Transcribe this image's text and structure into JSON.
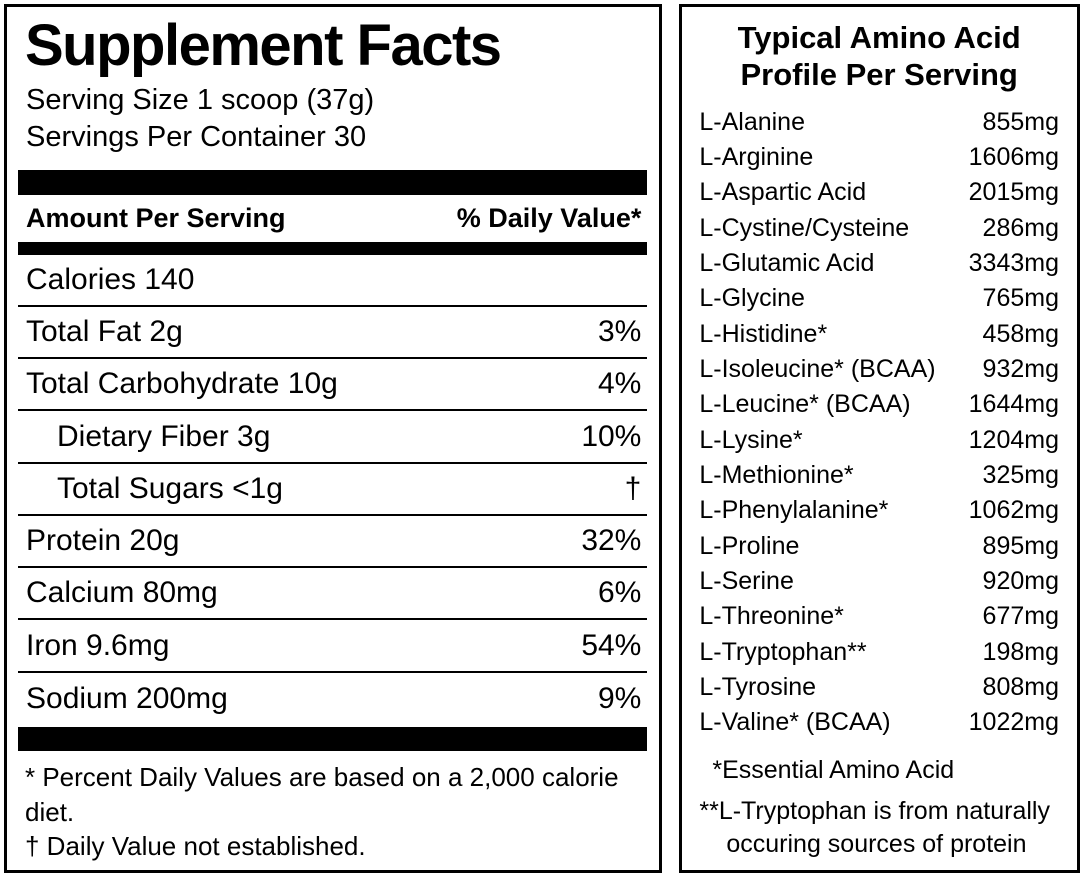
{
  "left_panel": {
    "title": "Supplement Facts",
    "serving_size": "Serving Size 1 scoop (37g)",
    "servings_per_container": "Servings Per Container 30",
    "header": {
      "amount": "Amount Per Serving",
      "daily_value": "% Daily Value*"
    },
    "rows": [
      {
        "name": "Calories 140",
        "dv": "",
        "indent": false
      },
      {
        "name": "Total Fat 2g",
        "dv": "3%",
        "indent": false
      },
      {
        "name": "Total Carbohydrate 10g",
        "dv": "4%",
        "indent": false
      },
      {
        "name": "Dietary Fiber 3g",
        "dv": "10%",
        "indent": true
      },
      {
        "name": "Total Sugars <1g",
        "dv": "†",
        "indent": true
      },
      {
        "name": "Protein 20g",
        "dv": "32%",
        "indent": false
      },
      {
        "name": "Calcium 80mg",
        "dv": "6%",
        "indent": false
      },
      {
        "name": "Iron 9.6mg",
        "dv": "54%",
        "indent": false
      },
      {
        "name": "Sodium 200mg",
        "dv": "9%",
        "indent": false
      }
    ],
    "footnotes": [
      "* Percent Daily Values are based on a 2,000 calorie diet.",
      "† Daily Value not established."
    ]
  },
  "right_panel": {
    "title_line1": "Typical Amino Acid",
    "title_line2": "Profile Per Serving",
    "rows": [
      {
        "name": "L-Alanine",
        "amount": "855mg"
      },
      {
        "name": "L-Arginine",
        "amount": "1606mg"
      },
      {
        "name": "L-Aspartic Acid",
        "amount": "2015mg"
      },
      {
        "name": "L-Cystine/Cysteine",
        "amount": "286mg"
      },
      {
        "name": "L-Glutamic Acid",
        "amount": "3343mg"
      },
      {
        "name": "L-Glycine",
        "amount": "765mg"
      },
      {
        "name": "L-Histidine*",
        "amount": "458mg"
      },
      {
        "name": "L-Isoleucine* (BCAA)",
        "amount": "932mg"
      },
      {
        "name": "L-Leucine* (BCAA)",
        "amount": "1644mg"
      },
      {
        "name": "L-Lysine*",
        "amount": "1204mg"
      },
      {
        "name": "L-Methionine*",
        "amount": "325mg"
      },
      {
        "name": "L-Phenylalanine*",
        "amount": "1062mg"
      },
      {
        "name": "L-Proline",
        "amount": "895mg"
      },
      {
        "name": "L-Serine",
        "amount": "920mg"
      },
      {
        "name": "L-Threonine*",
        "amount": "677mg"
      },
      {
        "name": "L-Tryptophan**",
        "amount": "198mg"
      },
      {
        "name": "L-Tyrosine",
        "amount": "808mg"
      },
      {
        "name": "L-Valine* (BCAA)",
        "amount": "1022mg"
      }
    ],
    "footnotes": [
      "*Essential Amino Acid",
      "**L-Tryptophan is from naturally occuring sources of protein"
    ]
  },
  "colors": {
    "ink": "#000000",
    "background": "#ffffff"
  }
}
